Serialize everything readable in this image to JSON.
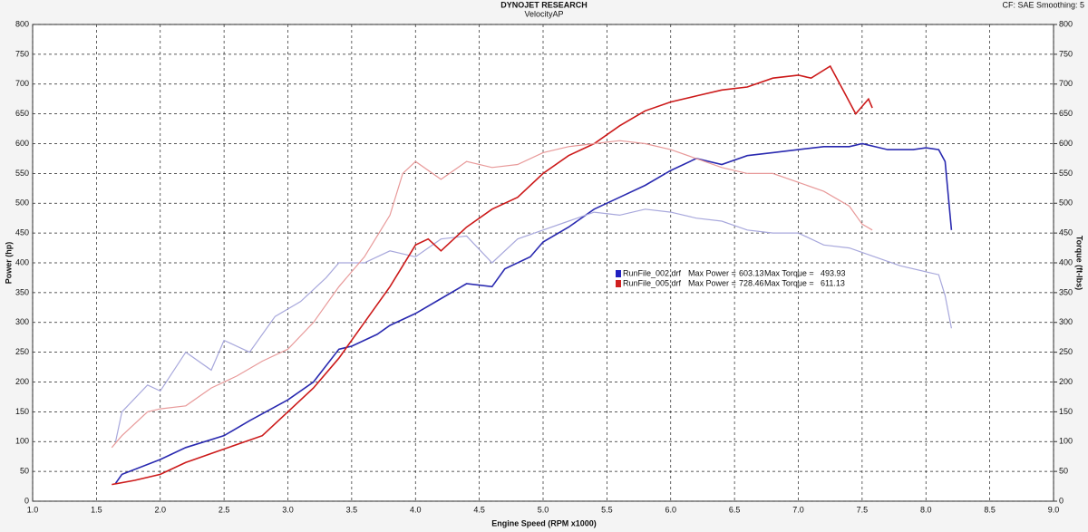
{
  "chart_data": {
    "type": "line",
    "title": "DYNOJET RESEARCH",
    "subtitle": "VelocityAP",
    "corner_note": "CF: SAE  Smoothing: 5",
    "x_label": "Engine Speed (RPM x1000)",
    "y_label": "Power (hp)",
    "y2_label": "Torque (ft-lbs)",
    "xlim": [
      1.0,
      9.0
    ],
    "xticks": [
      {
        "value": 1.0,
        "label": "1.0"
      },
      1.5,
      {
        "value": 2.0,
        "label": "2.0"
      },
      2.5,
      {
        "value": 3.0,
        "label": "3.0"
      },
      3.5,
      {
        "value": 4.0,
        "label": "4.0"
      },
      4.5,
      {
        "value": 5.0,
        "label": "5.0"
      },
      5.5,
      {
        "value": 6.0,
        "label": "6.0"
      },
      6.5,
      {
        "value": 7.0,
        "label": "7.0"
      },
      7.5,
      {
        "value": 8.0,
        "label": "8.0"
      },
      8.5,
      {
        "value": 9.0,
        "label": "9.0"
      }
    ],
    "ylim": [
      0,
      800
    ],
    "yticks": [
      0,
      50,
      100,
      150,
      200,
      250,
      300,
      350,
      400,
      450,
      500,
      550,
      600,
      650,
      700,
      750,
      800
    ],
    "y2lim": [
      0,
      800
    ],
    "y2ticks": [
      0,
      50,
      100,
      150,
      200,
      250,
      300,
      350,
      400,
      450,
      500,
      550,
      600,
      650,
      700,
      750,
      800
    ],
    "grid": true,
    "legend_labels": [
      "Max Power =",
      "Max Torque ="
    ],
    "legend": [
      {
        "name": "RunFile_002.drf",
        "color": "#2020c0",
        "max_power": 603.13,
        "max_torque": 493.93
      },
      {
        "name": "RunFile_005.drf",
        "color": "#d02020",
        "max_power": 728.46,
        "max_torque": 611.13
      }
    ],
    "series": [
      {
        "color": "#2a2ab0",
        "axis": "y",
        "x": [
          1.65,
          1.7,
          2.0,
          2.2,
          2.5,
          2.7,
          3.0,
          3.2,
          3.4,
          3.5,
          3.7,
          3.8,
          4.0,
          4.2,
          4.4,
          4.6,
          4.7,
          4.9,
          5.0,
          5.2,
          5.4,
          5.6,
          5.8,
          6.0,
          6.2,
          6.4,
          6.6,
          6.8,
          7.0,
          7.2,
          7.4,
          7.5,
          7.7,
          7.9,
          8.0,
          8.1,
          8.15,
          8.2
        ],
        "values": [
          30,
          45,
          70,
          90,
          110,
          135,
          170,
          200,
          255,
          260,
          280,
          295,
          315,
          340,
          365,
          360,
          390,
          410,
          435,
          460,
          490,
          510,
          530,
          555,
          575,
          565,
          580,
          585,
          590,
          595,
          595,
          600,
          590,
          590,
          593,
          590,
          570,
          455
        ]
      },
      {
        "color": "#a8a8dc",
        "axis": "y2",
        "x": [
          1.65,
          1.7,
          1.9,
          2.0,
          2.2,
          2.4,
          2.5,
          2.7,
          2.9,
          3.1,
          3.3,
          3.4,
          3.6,
          3.8,
          4.0,
          4.2,
          4.4,
          4.6,
          4.8,
          5.0,
          5.2,
          5.4,
          5.6,
          5.8,
          6.0,
          6.2,
          6.4,
          6.6,
          6.8,
          7.0,
          7.2,
          7.4,
          7.6,
          7.8,
          8.0,
          8.1,
          8.15,
          8.2
        ],
        "values": [
          100,
          150,
          195,
          185,
          250,
          220,
          270,
          250,
          310,
          335,
          375,
          400,
          400,
          420,
          410,
          440,
          445,
          400,
          440,
          455,
          470,
          485,
          480,
          490,
          485,
          475,
          470,
          455,
          450,
          450,
          430,
          425,
          410,
          395,
          385,
          380,
          345,
          290
        ]
      },
      {
        "color": "#cc1a1a",
        "axis": "y",
        "x": [
          1.62,
          1.8,
          2.0,
          2.2,
          2.4,
          2.6,
          2.8,
          3.0,
          3.2,
          3.4,
          3.6,
          3.8,
          4.0,
          4.1,
          4.2,
          4.4,
          4.6,
          4.8,
          5.0,
          5.2,
          5.4,
          5.6,
          5.8,
          6.0,
          6.2,
          6.4,
          6.6,
          6.8,
          7.0,
          7.1,
          7.25,
          7.35,
          7.45,
          7.55,
          7.58
        ],
        "values": [
          28,
          35,
          45,
          65,
          80,
          95,
          110,
          150,
          190,
          240,
          300,
          360,
          430,
          440,
          420,
          460,
          490,
          510,
          550,
          580,
          600,
          630,
          655,
          670,
          680,
          690,
          695,
          710,
          715,
          710,
          730,
          690,
          650,
          675,
          660
        ]
      },
      {
        "color": "#e89a9a",
        "axis": "y2",
        "x": [
          1.62,
          1.7,
          1.9,
          2.0,
          2.2,
          2.4,
          2.6,
          2.8,
          3.0,
          3.2,
          3.4,
          3.6,
          3.8,
          3.9,
          4.0,
          4.2,
          4.4,
          4.6,
          4.8,
          5.0,
          5.2,
          5.4,
          5.6,
          5.8,
          6.0,
          6.2,
          6.4,
          6.6,
          6.8,
          7.0,
          7.2,
          7.4,
          7.5,
          7.58
        ],
        "values": [
          90,
          110,
          150,
          155,
          160,
          190,
          210,
          235,
          255,
          300,
          360,
          410,
          480,
          550,
          570,
          540,
          570,
          560,
          565,
          585,
          595,
          600,
          605,
          600,
          590,
          575,
          560,
          550,
          550,
          535,
          520,
          495,
          465,
          455
        ]
      }
    ]
  }
}
